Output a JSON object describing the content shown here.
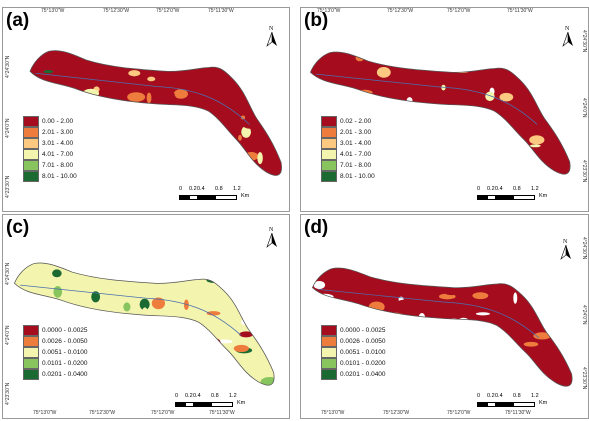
{
  "panels": [
    {
      "id": "a",
      "label": "(a)",
      "lon_ticks": [
        "75°13'0\"W",
        "75°12'30\"W",
        "75°12'0\"W",
        "75°11'30\"W"
      ],
      "lat_ticks_left": [
        "4°24'30\"N",
        "4°24'0\"N",
        "4°23'30\"N"
      ],
      "lat_ticks_right": [],
      "legend": [
        {
          "label": "0.00 - 2.00",
          "color": "#a50d1f"
        },
        {
          "label": "2.01 - 3.00",
          "color": "#ee7c3c"
        },
        {
          "label": "3.01 - 4.00",
          "color": "#fdc880"
        },
        {
          "label": "4.01 - 7.00",
          "color": "#f3f4ad"
        },
        {
          "label": "7.01 - 8.00",
          "color": "#88c55e"
        },
        {
          "label": "8.01 - 10.00",
          "color": "#1b6a32"
        }
      ],
      "scale_ticks": [
        "0",
        "0.2",
        "0.4",
        "0.8",
        "1.2"
      ],
      "scale_unit": "Km"
    },
    {
      "id": "b",
      "label": "(b)",
      "lon_ticks": [
        "75°13'0\"W",
        "75°12'30\"W",
        "75°12'0\"W",
        "75°11'30\"W"
      ],
      "lat_ticks_left": [],
      "lat_ticks_right": [
        "4°24'30\"N",
        "4°24'0\"N",
        "4°23'30\"N"
      ],
      "legend": [
        {
          "label": "0.02 - 2.00",
          "color": "#a50d1f"
        },
        {
          "label": "2.01 - 3.00",
          "color": "#ee7c3c"
        },
        {
          "label": "3.01 - 4.00",
          "color": "#fdc880"
        },
        {
          "label": "4.01 - 7.00",
          "color": "#f3f4ad"
        },
        {
          "label": "7.01 - 8.00",
          "color": "#88c55e"
        },
        {
          "label": "8.01 - 10.00",
          "color": "#1b6a32"
        }
      ],
      "scale_ticks": [
        "0",
        "0.2",
        "0.4",
        "0.8",
        "1.2"
      ],
      "scale_unit": "Km"
    },
    {
      "id": "c",
      "label": "(c)",
      "lon_ticks": [
        "75°13'0\"W",
        "75°12'30\"W",
        "75°12'0\"W",
        "75°11'30\"W"
      ],
      "lat_ticks_left": [
        "4°24'30\"N",
        "4°24'0\"N",
        "4°23'30\"N"
      ],
      "lat_ticks_right": [],
      "legend": [
        {
          "label": "0.0000 - 0.0025",
          "color": "#a50d1f"
        },
        {
          "label": "0.0026 - 0.0050",
          "color": "#ee7c3c"
        },
        {
          "label": "0.0051 - 0.0100",
          "color": "#f3f4ad"
        },
        {
          "label": "0.0101 - 0.0200",
          "color": "#88c55e"
        },
        {
          "label": "0.0201 - 0.0400",
          "color": "#1b6a32"
        }
      ],
      "scale_ticks": [
        "0",
        "0.2",
        "0.4",
        "0.8",
        "1.2"
      ],
      "scale_unit": "Km"
    },
    {
      "id": "d",
      "label": "(d)",
      "lon_ticks": [
        "75°13'0\"W",
        "75°12'30\"W",
        "75°12'0\"W",
        "75°11'30\"W"
      ],
      "lat_ticks_left": [],
      "lat_ticks_right": [
        "4°24'30\"N",
        "4°24'0\"N",
        "4°23'30\"N"
      ],
      "legend": [
        {
          "label": "0.0000 - 0.0025",
          "color": "#a50d1f"
        },
        {
          "label": "0.0026 - 0.0050",
          "color": "#ee7c3c"
        },
        {
          "label": "0.0051 - 0.0100",
          "color": "#f3f4ad"
        },
        {
          "label": "0.0101 - 0.0200",
          "color": "#88c55e"
        },
        {
          "label": "0.0201 - 0.0400",
          "color": "#1b6a32"
        }
      ],
      "scale_ticks": [
        "0",
        "0.2",
        "0.4",
        "0.8",
        "1.2"
      ],
      "scale_unit": "Km"
    }
  ],
  "north_label": "N"
}
